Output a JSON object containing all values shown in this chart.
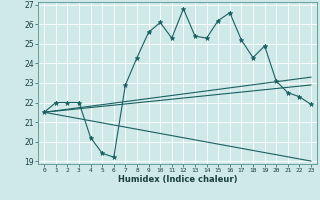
{
  "title": "",
  "xlabel": "Humidex (Indice chaleur)",
  "bg_color": "#cfe8e8",
  "grid_color": "#ffffff",
  "line_color": "#1a6060",
  "marker_color": "#1a6060",
  "xmin": -0.5,
  "xmax": 23.5,
  "ymin": 19,
  "ymax": 27,
  "yticks": [
    19,
    20,
    21,
    22,
    23,
    24,
    25,
    26,
    27
  ],
  "xticks": [
    0,
    1,
    2,
    3,
    4,
    5,
    6,
    7,
    8,
    9,
    10,
    11,
    12,
    13,
    14,
    15,
    16,
    17,
    18,
    19,
    20,
    21,
    22,
    23
  ],
  "series": [
    {
      "x": [
        0,
        1,
        2,
        3,
        4,
        5,
        6,
        7,
        8,
        9,
        10,
        11,
        12,
        13,
        14,
        15,
        16,
        17,
        18,
        19,
        20,
        21,
        22,
        23
      ],
      "y": [
        21.5,
        22.0,
        22.0,
        22.0,
        20.2,
        19.4,
        19.2,
        22.9,
        24.3,
        25.6,
        26.1,
        25.3,
        26.8,
        25.4,
        25.3,
        26.2,
        26.6,
        25.2,
        24.3,
        24.9,
        23.1,
        22.5,
        22.3,
        21.9
      ],
      "with_markers": true,
      "linestyle": "-"
    },
    {
      "x": [
        0,
        23
      ],
      "y": [
        21.5,
        23.3
      ],
      "with_markers": false,
      "linestyle": "-"
    },
    {
      "x": [
        0,
        23
      ],
      "y": [
        21.5,
        22.9
      ],
      "with_markers": false,
      "linestyle": "-"
    },
    {
      "x": [
        0,
        23
      ],
      "y": [
        21.5,
        19.0
      ],
      "with_markers": false,
      "linestyle": "-"
    }
  ]
}
